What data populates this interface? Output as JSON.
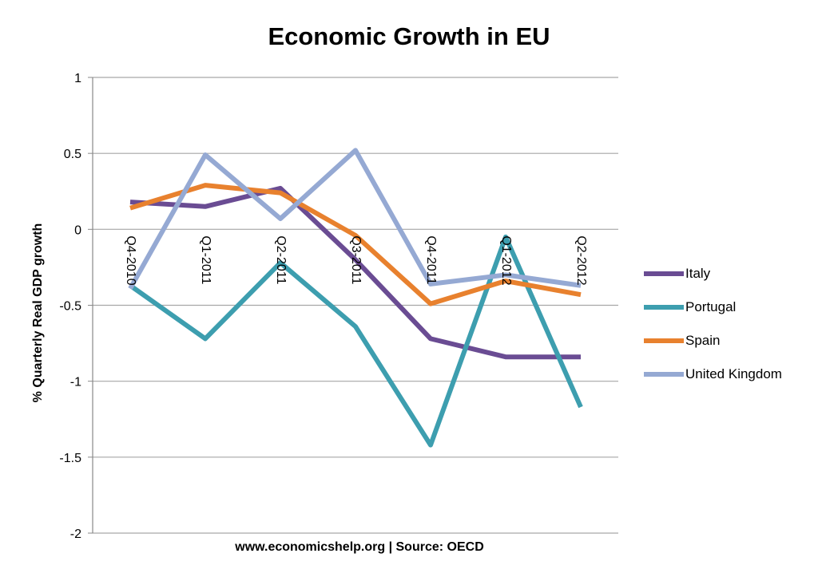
{
  "chart_data": {
    "type": "line",
    "title": "Economic Growth in EU",
    "xlabel": "www.economicshelp.org | Source: OECD",
    "ylabel": "% Quarterly Real GDP growth",
    "categories": [
      "Q4-2010",
      "Q1-2011",
      "Q2-2011",
      "Q3-2011",
      "Q4-2011",
      "Q1-2012",
      "Q2-2012"
    ],
    "ylim": [
      -2,
      1
    ],
    "yticks": [
      1,
      0.5,
      0,
      -0.5,
      -1,
      -1.5,
      -2
    ],
    "ytick_labels": [
      "1",
      "0.5",
      "0",
      "-0.5",
      "-1",
      "-1.5",
      "-2"
    ],
    "grid": true,
    "legend_position": "right",
    "series": [
      {
        "name": "Italy",
        "color": "#6a4c93",
        "values": [
          0.18,
          0.15,
          0.27,
          -0.2,
          -0.72,
          -0.84,
          -0.84
        ]
      },
      {
        "name": "Portugal",
        "color": "#3d9eaf",
        "values": [
          -0.37,
          -0.72,
          -0.22,
          -0.64,
          -1.42,
          -0.05,
          -1.17
        ]
      },
      {
        "name": "Spain",
        "color": "#e8812e",
        "values": [
          0.14,
          0.29,
          0.24,
          -0.04,
          -0.49,
          -0.34,
          -0.43
        ]
      },
      {
        "name": "United Kingdom",
        "color": "#95a9d3",
        "values": [
          -0.39,
          0.49,
          0.07,
          0.52,
          -0.36,
          -0.3,
          -0.37
        ]
      }
    ]
  }
}
